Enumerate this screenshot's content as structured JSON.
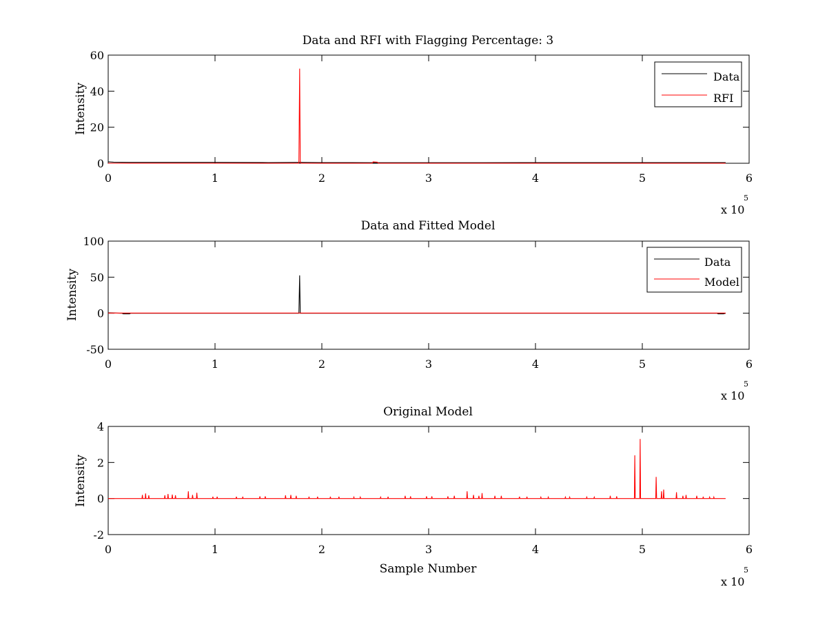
{
  "figure": {
    "background": "#ffffff"
  },
  "colors": {
    "data": "#000000",
    "rfi": "#ff0000",
    "model": "#ff0000",
    "axes": "#000000"
  },
  "chart_data": [
    {
      "type": "line",
      "title": "Data and RFI with Flagging Percentage: 3",
      "xlabel": "",
      "ylabel": "Intensity",
      "xlim": [
        0,
        600000
      ],
      "ylim": [
        0,
        60
      ],
      "xticks": [
        0,
        100000,
        200000,
        300000,
        400000,
        500000,
        600000
      ],
      "xtick_labels": [
        "0",
        "1",
        "2",
        "3",
        "4",
        "5",
        "6"
      ],
      "yticks": [
        0,
        20,
        40,
        60
      ],
      "ytick_labels": [
        "0",
        "20",
        "40",
        "60"
      ],
      "x_exponent": {
        "base": "x 10",
        "power": "5"
      },
      "legend": {
        "position": "top-right",
        "entries": [
          "Data",
          "RFI"
        ]
      },
      "series": [
        {
          "name": "Data",
          "color": "#000000",
          "points": [
            [
              0,
              0.8
            ],
            [
              5000,
              0.6
            ],
            [
              20000,
              0.5
            ],
            [
              60000,
              0.5
            ],
            [
              100000,
              0.5
            ],
            [
              150000,
              0.4
            ],
            [
              179000,
              0.5
            ],
            [
              200000,
              0.4
            ],
            [
              250000,
              0.3
            ],
            [
              300000,
              0.3
            ],
            [
              350000,
              0.3
            ],
            [
              400000,
              0.4
            ],
            [
              450000,
              0.4
            ],
            [
              500000,
              0.4
            ],
            [
              550000,
              0.4
            ],
            [
              578000,
              0.4
            ]
          ]
        },
        {
          "name": "RFI",
          "color": "#ff0000",
          "points": [
            [
              0,
              0
            ],
            [
              178500,
              0
            ],
            [
              179200,
              52.5
            ],
            [
              179800,
              1.0
            ],
            [
              180500,
              0
            ],
            [
              247000,
              0
            ],
            [
              248000,
              0.8
            ],
            [
              252000,
              0.6
            ],
            [
              253000,
              0
            ],
            [
              578000,
              0
            ]
          ]
        }
      ]
    },
    {
      "type": "line",
      "title": "Data and Fitted Model",
      "xlabel": "",
      "ylabel": "Intensity",
      "xlim": [
        0,
        600000
      ],
      "ylim": [
        -50,
        100
      ],
      "xticks": [
        0,
        100000,
        200000,
        300000,
        400000,
        500000,
        600000
      ],
      "xtick_labels": [
        "0",
        "1",
        "2",
        "3",
        "4",
        "5",
        "6"
      ],
      "yticks": [
        -50,
        0,
        50,
        100
      ],
      "ytick_labels": [
        "-50",
        "0",
        "50",
        "100"
      ],
      "x_exponent": {
        "base": "x 10",
        "power": "5"
      },
      "legend": {
        "position": "top-right",
        "entries": [
          "Data",
          "Model"
        ]
      },
      "series": [
        {
          "name": "Data",
          "color": "#000000",
          "points": [
            [
              0,
              0.5
            ],
            [
              13000,
              0
            ],
            [
              14000,
              -0.9
            ],
            [
              20000,
              -0.9
            ],
            [
              21000,
              0
            ],
            [
              178500,
              0
            ],
            [
              179200,
              52.5
            ],
            [
              179800,
              0
            ],
            [
              570000,
              0
            ],
            [
              571000,
              -0.9
            ],
            [
              576000,
              -0.9
            ],
            [
              578000,
              0
            ]
          ]
        },
        {
          "name": "Model",
          "color": "#ff0000",
          "points": [
            [
              0,
              0.3
            ],
            [
              578000,
              0.3
            ]
          ]
        }
      ]
    },
    {
      "type": "line",
      "title": "Original Model",
      "xlabel": "Sample Number",
      "ylabel": "Intensity",
      "xlim": [
        0,
        600000
      ],
      "ylim": [
        -2,
        4
      ],
      "xticks": [
        0,
        100000,
        200000,
        300000,
        400000,
        500000,
        600000
      ],
      "xtick_labels": [
        "0",
        "1",
        "2",
        "3",
        "4",
        "5",
        "6"
      ],
      "yticks": [
        -2,
        0,
        2,
        4
      ],
      "ytick_labels": [
        "-2",
        "0",
        "2",
        "4"
      ],
      "x_exponent": {
        "base": "x 10",
        "power": "5"
      },
      "legend": null,
      "series": [
        {
          "name": "",
          "color": "#ff0000",
          "baseline": 0,
          "spikes": [
            [
              32000,
              0.2
            ],
            [
              35000,
              0.28
            ],
            [
              38000,
              0.18
            ],
            [
              53000,
              0.18
            ],
            [
              56000,
              0.25
            ],
            [
              60000,
              0.22
            ],
            [
              63000,
              0.18
            ],
            [
              75000,
              0.4
            ],
            [
              79000,
              0.2
            ],
            [
              83000,
              0.32
            ],
            [
              98000,
              0.1
            ],
            [
              102000,
              0.1
            ],
            [
              120000,
              0.1
            ],
            [
              126000,
              0.1
            ],
            [
              142000,
              0.12
            ],
            [
              147000,
              0.12
            ],
            [
              166000,
              0.18
            ],
            [
              171000,
              0.2
            ],
            [
              176000,
              0.15
            ],
            [
              188000,
              0.1
            ],
            [
              196000,
              0.1
            ],
            [
              208000,
              0.1
            ],
            [
              216000,
              0.1
            ],
            [
              230000,
              0.08
            ],
            [
              236000,
              0.08
            ],
            [
              255000,
              0.08
            ],
            [
              262000,
              0.1
            ],
            [
              278000,
              0.15
            ],
            [
              283000,
              0.12
            ],
            [
              298000,
              0.12
            ],
            [
              303000,
              0.12
            ],
            [
              318000,
              0.12
            ],
            [
              324000,
              0.15
            ],
            [
              336000,
              0.4
            ],
            [
              342000,
              0.2
            ],
            [
              347000,
              0.15
            ],
            [
              350000,
              0.3
            ],
            [
              362000,
              0.15
            ],
            [
              368000,
              0.15
            ],
            [
              385000,
              0.1
            ],
            [
              392000,
              0.1
            ],
            [
              405000,
              0.08
            ],
            [
              412000,
              0.08
            ],
            [
              428000,
              0.08
            ],
            [
              432000,
              0.08
            ],
            [
              448000,
              0.08
            ],
            [
              455000,
              0.08
            ],
            [
              470000,
              0.15
            ],
            [
              476000,
              0.12
            ],
            [
              493000,
              2.4
            ],
            [
              498000,
              3.3
            ],
            [
              513000,
              1.2
            ],
            [
              518000,
              0.4
            ],
            [
              520000,
              0.5
            ],
            [
              532000,
              0.35
            ],
            [
              538000,
              0.15
            ],
            [
              541000,
              0.2
            ],
            [
              551000,
              0.15
            ],
            [
              557000,
              0.1
            ],
            [
              563000,
              0.08
            ],
            [
              567000,
              0.08
            ]
          ]
        }
      ]
    }
  ]
}
